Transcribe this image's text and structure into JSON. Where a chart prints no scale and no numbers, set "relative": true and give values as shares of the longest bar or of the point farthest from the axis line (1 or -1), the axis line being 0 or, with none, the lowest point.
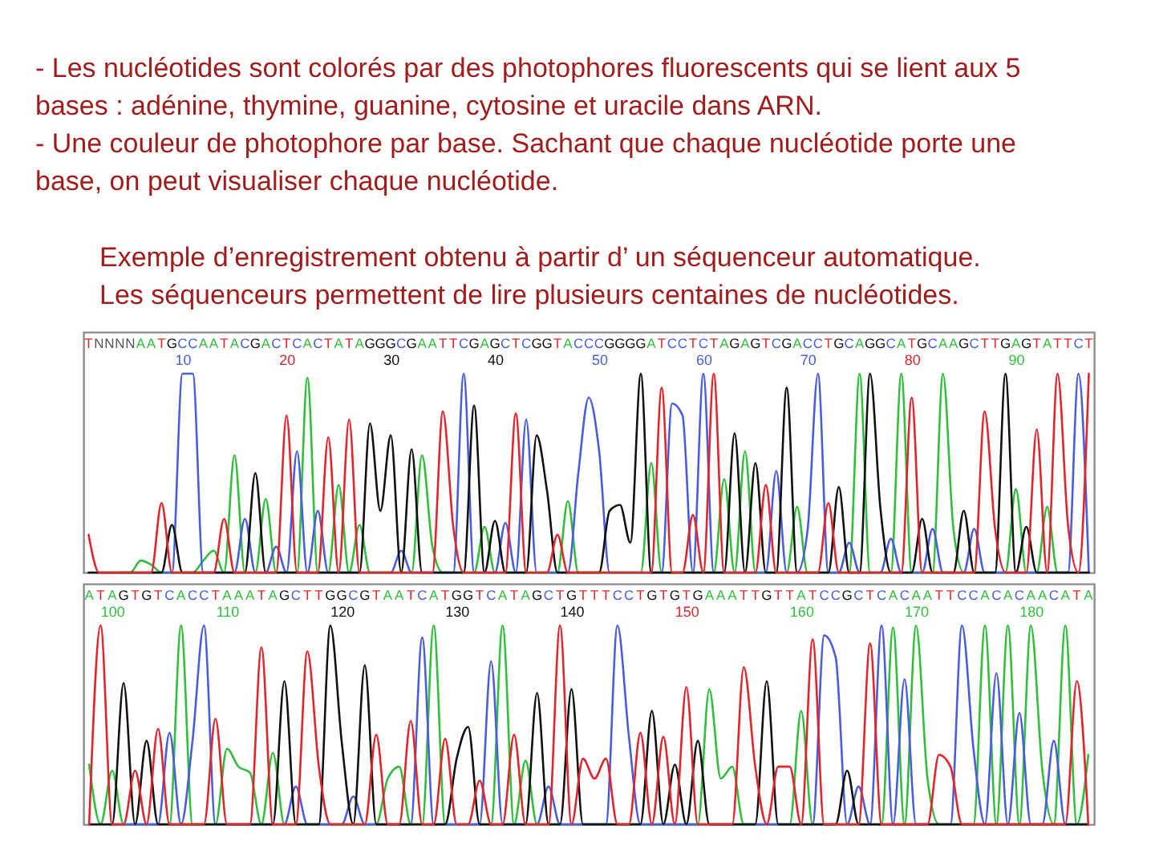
{
  "chart_data": [
    {
      "type": "line",
      "relative": true,
      "annotations": [
        "- Les nucléotides sont colorés par des photophores fluorescents qui se lient aux 5 bases : adénine, thymine, guanine, cytosine et uracile dans ARN.",
        "- Une couleur de photophore par base. Sachant que chaque nucléotide porte une base, on peut visualiser chaque nucléotide.",
        "Exemple d’enregistrement obtenu à partir d’ un séquenceur automatique.",
        "Les séquenceurs permettent de lire plusieurs centaines de nucléotides."
      ],
      "categories": [
        "T",
        "N",
        "N",
        "N",
        "N",
        "A",
        "A",
        "T",
        "G",
        "C",
        "C",
        "A",
        "A",
        "T",
        "A",
        "C",
        "G",
        "A",
        "C",
        "T",
        "C",
        "A",
        "C",
        "T",
        "A",
        "T",
        "A",
        "G",
        "G",
        "G",
        "C",
        "G",
        "A",
        "A",
        "T",
        "T",
        "C",
        "G",
        "A",
        "G",
        "C",
        "T",
        "C",
        "G",
        "G",
        "T",
        "A",
        "C",
        "C",
        "C",
        "G",
        "G",
        "G",
        "G",
        "A",
        "T",
        "C",
        "C",
        "T",
        "C",
        "T",
        "A",
        "G",
        "A",
        "G",
        "T",
        "C",
        "G",
        "A",
        "C",
        "C",
        "T",
        "G",
        "C",
        "A",
        "G",
        "G",
        "C",
        "A",
        "T",
        "G",
        "C",
        "A",
        "A",
        "G",
        "C",
        "T",
        "T",
        "G",
        "A",
        "G",
        "T",
        "A",
        "T",
        "T",
        "C",
        "T"
      ],
      "x2lim": [
        0.5,
        97.5
      ],
      "x2ticks": [
        10,
        20,
        30,
        40,
        50,
        60,
        70,
        80,
        90
      ],
      "series": [
        {
          "color": "#2fbf3a",
          "values": [
            null,
            null,
            null,
            0,
            0,
            0.06,
            0.04,
            0,
            0,
            0,
            0,
            0.06,
            0.11,
            0,
            0.59,
            0,
            0,
            0.37,
            0,
            0,
            0,
            0.98,
            0,
            0,
            0.44,
            0,
            0.24,
            0,
            0,
            0,
            0,
            0,
            0.59,
            0.13,
            0,
            0,
            0,
            0,
            0.23,
            0,
            0,
            0,
            0,
            0,
            0,
            0,
            0.36,
            0,
            0,
            0,
            0,
            0,
            0,
            0,
            0.55,
            0,
            0,
            0,
            0,
            0,
            0,
            0.47,
            0,
            0.61,
            0,
            0,
            0,
            0,
            0.33,
            0,
            0,
            0,
            0,
            0,
            1,
            0,
            0,
            0,
            1,
            0,
            0,
            0,
            1,
            0.22,
            0,
            0,
            0,
            0,
            0,
            0.42,
            0,
            0,
            0.33,
            0,
            0,
            null,
            null
          ]
        },
        {
          "color": "#4a5ce0",
          "values": [
            null,
            null,
            null,
            null,
            null,
            null,
            0,
            0,
            0,
            1,
            1,
            0,
            0,
            0,
            0,
            0.27,
            0,
            0,
            0.13,
            0,
            0.61,
            0,
            0.31,
            0,
            0,
            0,
            0,
            0,
            0,
            0,
            0.11,
            0,
            0,
            0,
            0,
            0,
            1,
            0,
            0,
            0,
            0.25,
            0,
            0.77,
            0,
            0,
            0,
            0,
            0.5,
            0.88,
            0.61,
            0,
            0,
            0,
            0,
            0,
            0,
            0.85,
            0.79,
            0,
            1,
            0,
            0,
            0,
            0,
            0,
            0,
            0.51,
            0,
            0,
            0.21,
            1,
            0,
            0,
            0.15,
            0,
            0,
            0,
            0.17,
            0,
            0,
            0,
            0.22,
            0,
            0,
            0,
            0.22,
            0,
            0,
            0,
            0,
            0,
            0,
            0,
            0,
            0,
            1,
            0
          ]
        },
        {
          "color": "#111111",
          "values": [
            0,
            0,
            0,
            0,
            0,
            0,
            0,
            0,
            0.24,
            0,
            0,
            0,
            0,
            0,
            0,
            0,
            0.5,
            0,
            0,
            0,
            0,
            0,
            0,
            0,
            0,
            0,
            0,
            0.75,
            0.31,
            0.69,
            0,
            0.62,
            0,
            0,
            0,
            0,
            0,
            0.84,
            0,
            0.26,
            0,
            0,
            0,
            0.69,
            0.41,
            0,
            0,
            0,
            0,
            0,
            0.31,
            0.34,
            0.15,
            1,
            0,
            0,
            0,
            0,
            0,
            0,
            0,
            0,
            0.7,
            0,
            0.55,
            0,
            0,
            0.93,
            0,
            0,
            0,
            0,
            0.43,
            0,
            0,
            1,
            0.32,
            0,
            0,
            0,
            0.27,
            0,
            0,
            0,
            0.31,
            0,
            0,
            0,
            1,
            0,
            0.23,
            0,
            0,
            0,
            0,
            0,
            0
          ]
        },
        {
          "color": "#e3242b",
          "values": [
            0.19,
            0,
            0,
            0,
            0,
            0,
            0,
            0.35,
            0,
            0,
            0,
            0,
            0,
            0.27,
            0,
            0,
            0,
            0,
            0,
            0.79,
            0,
            0,
            0,
            0.68,
            0,
            0.77,
            0,
            0,
            0,
            0,
            0,
            0,
            0,
            0,
            0.81,
            0.23,
            0,
            0,
            0,
            0,
            0,
            0.8,
            0,
            0,
            0,
            0.19,
            0,
            0,
            0,
            0,
            0,
            0,
            0,
            0,
            0,
            0.93,
            0,
            0,
            0.29,
            0,
            1,
            0,
            0,
            0,
            0,
            0.44,
            0,
            0,
            0,
            0,
            0,
            0.35,
            0,
            0,
            0,
            0,
            0,
            0,
            0,
            0.88,
            0,
            0,
            0,
            0,
            0,
            0,
            0.81,
            0.22,
            0,
            0,
            0,
            0.72,
            0,
            1,
            0.24,
            0,
            1
          ]
        }
      ]
    },
    {
      "type": "line",
      "relative": true,
      "categories": [
        "A",
        "T",
        "A",
        "G",
        "T",
        "G",
        "T",
        "C",
        "A",
        "C",
        "C",
        "T",
        "A",
        "A",
        "A",
        "T",
        "A",
        "G",
        "C",
        "T",
        "T",
        "G",
        "G",
        "C",
        "G",
        "T",
        "A",
        "A",
        "T",
        "C",
        "A",
        "T",
        "G",
        "G",
        "T",
        "C",
        "A",
        "T",
        "A",
        "G",
        "C",
        "T",
        "G",
        "T",
        "T",
        "T",
        "C",
        "C",
        "T",
        "G",
        "T",
        "G",
        "T",
        "G",
        "A",
        "A",
        "A",
        "T",
        "T",
        "G",
        "T",
        "T",
        "A",
        "T",
        "C",
        "C",
        "G",
        "C",
        "T",
        "C",
        "A",
        "C",
        "A",
        "A",
        "T",
        "T",
        "C",
        "C",
        "A",
        "C",
        "A",
        "C",
        "A",
        "A",
        "C",
        "A",
        "T",
        "A"
      ],
      "x2lim": [
        97.5,
        185.5
      ],
      "x2ticks": [
        100,
        110,
        120,
        130,
        140,
        150,
        160,
        170,
        180
      ],
      "series": [
        {
          "color": "#2fbf3a",
          "values": [
            0.3,
            0,
            0.27,
            0,
            0,
            0,
            0,
            0,
            1,
            0,
            0,
            0,
            0.38,
            0.29,
            0.26,
            0,
            0.36,
            0,
            0,
            0,
            0,
            0,
            0,
            0,
            0,
            0,
            0.23,
            0.29,
            0,
            0,
            1,
            0,
            0,
            0,
            0,
            0,
            1,
            0,
            0.32,
            0,
            0,
            0,
            0,
            0,
            0,
            0,
            0,
            0,
            0,
            0,
            0,
            0,
            0,
            0,
            0.68,
            0.23,
            0.29,
            0,
            0,
            0,
            0,
            0,
            0.57,
            0,
            0,
            0,
            0,
            0,
            0,
            0,
            0.99,
            0,
            1,
            0.23,
            0,
            0,
            0,
            0,
            1,
            0,
            1,
            0,
            1,
            0.27,
            0,
            1,
            0,
            0.35
          ]
        },
        {
          "color": "#4a5ce0",
          "values": [
            null,
            null,
            0,
            0,
            0,
            0,
            0,
            0.46,
            0,
            0.42,
            1,
            0,
            0,
            0,
            0,
            0,
            0,
            0,
            0.19,
            0,
            0,
            0,
            0,
            0.14,
            0,
            0,
            0,
            0,
            0,
            0.94,
            0,
            0,
            0,
            0,
            0,
            0.82,
            0,
            0,
            0,
            0,
            0.19,
            0,
            0,
            0,
            0,
            0,
            1,
            0.44,
            0,
            0,
            0,
            0,
            0,
            0,
            0,
            0,
            0,
            0,
            0,
            0,
            0,
            0,
            0,
            0,
            0.95,
            0.84,
            0,
            0.19,
            0,
            1,
            0,
            0.73,
            0,
            0,
            0,
            0,
            1,
            0.38,
            0,
            0.76,
            0,
            0.56,
            0,
            0,
            0.42,
            0,
            0,
            0
          ]
        },
        {
          "color": "#111111",
          "values": [
            0,
            0,
            0,
            0.71,
            0,
            0.42,
            0,
            0,
            0,
            0,
            0,
            0,
            0,
            0,
            0,
            0,
            0,
            0.72,
            0,
            0,
            0,
            1,
            0.41,
            0,
            0.8,
            0,
            0,
            0,
            0,
            0,
            0,
            0,
            0.33,
            0.49,
            0,
            0,
            0,
            0,
            0,
            0.66,
            0,
            0,
            0.68,
            0,
            0,
            0,
            0,
            0,
            0,
            0.57,
            0,
            0.3,
            0,
            0.42,
            0,
            0,
            0,
            0,
            0,
            0.72,
            0,
            0,
            0,
            0,
            0,
            0,
            0.27,
            0,
            0,
            0,
            0,
            0,
            0,
            0,
            0,
            0,
            0,
            0,
            0,
            0,
            0,
            0,
            0,
            0,
            0,
            0,
            0,
            0
          ]
        },
        {
          "color": "#e3242b",
          "values": [
            0,
            1,
            0,
            0,
            0.27,
            0,
            0.48,
            0,
            0,
            0,
            0,
            0.53,
            0,
            0,
            0,
            0.89,
            0,
            0,
            0,
            0.87,
            0.29,
            0,
            0,
            0,
            0,
            0.45,
            0,
            0,
            0.52,
            0,
            0,
            0.43,
            0,
            0,
            0.22,
            0,
            0,
            0.45,
            0,
            0,
            0,
            1,
            0,
            0.33,
            0.23,
            0.33,
            0,
            0,
            0.46,
            0,
            0.44,
            0,
            0.69,
            0,
            0,
            0,
            0,
            0.79,
            0.29,
            0,
            0.29,
            0.29,
            0,
            0.93,
            0,
            0,
            0,
            0,
            0.91,
            0,
            0,
            0,
            0,
            0,
            0.35,
            0.29,
            0,
            0,
            0,
            0,
            0,
            0,
            0,
            0,
            0,
            0,
            0.72,
            0
          ]
        }
      ]
    }
  ]
}
